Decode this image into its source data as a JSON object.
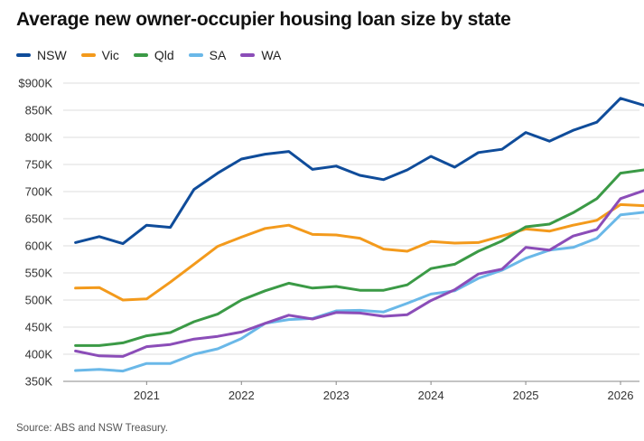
{
  "title": "Average new owner-occupier housing loan size by state",
  "source": "Source: ABS and NSW Treasury.",
  "chart_data": {
    "type": "line",
    "title": "Average new owner-occupier housing loan size by state",
    "xlabel": "",
    "ylabel": "",
    "x_ticks": [
      "2021",
      "2022",
      "2023",
      "2024",
      "2025",
      "2026"
    ],
    "y_ticks": [
      "$900K",
      "850K",
      "800K",
      "750K",
      "700K",
      "650K",
      "600K",
      "550K",
      "500K",
      "450K",
      "400K",
      "350K"
    ],
    "ylim": [
      350,
      900
    ],
    "xlim": [
      2020.12,
      2026.2
    ],
    "grid": true,
    "legend_position": "top-left",
    "x": [
      2020.25,
      2020.5,
      2020.75,
      2021.0,
      2021.25,
      2021.5,
      2021.75,
      2022.0,
      2022.25,
      2022.5,
      2022.75,
      2023.0,
      2023.25,
      2023.5,
      2023.75,
      2024.0,
      2024.25,
      2024.5,
      2024.75,
      2025.0,
      2025.25,
      2025.5,
      2025.75,
      2026.0,
      2026.25
    ],
    "series": [
      {
        "name": "NSW",
        "color": "#0f4c9a",
        "values": [
          606,
          617,
          604,
          638,
          634,
          704,
          734,
          760,
          769,
          774,
          741,
          747,
          730,
          722,
          740,
          765,
          745,
          772,
          778,
          809,
          793,
          813,
          828,
          872,
          859
        ]
      },
      {
        "name": "Vic",
        "color": "#f39a1c",
        "values": [
          522,
          523,
          500,
          502,
          533,
          566,
          599,
          616,
          632,
          638,
          621,
          620,
          614,
          594,
          590,
          608,
          605,
          606,
          618,
          631,
          627,
          638,
          647,
          676,
          674
        ]
      },
      {
        "name": "Qld",
        "color": "#3b9a46",
        "values": [
          416,
          416,
          421,
          434,
          440,
          460,
          474,
          500,
          517,
          531,
          522,
          525,
          518,
          518,
          528,
          558,
          566,
          590,
          609,
          635,
          640,
          661,
          687,
          734,
          740
        ]
      },
      {
        "name": "SA",
        "color": "#6ab8e8",
        "values": [
          370,
          372,
          369,
          383,
          383,
          400,
          410,
          429,
          457,
          464,
          466,
          480,
          481,
          478,
          494,
          511,
          517,
          540,
          555,
          577,
          592,
          597,
          614,
          657,
          662
        ]
      },
      {
        "name": "WA",
        "color": "#8b4db8",
        "values": [
          406,
          397,
          396,
          414,
          418,
          428,
          433,
          441,
          457,
          472,
          465,
          477,
          476,
          470,
          473,
          499,
          519,
          548,
          557,
          597,
          592,
          618,
          630,
          687,
          702
        ]
      }
    ]
  }
}
